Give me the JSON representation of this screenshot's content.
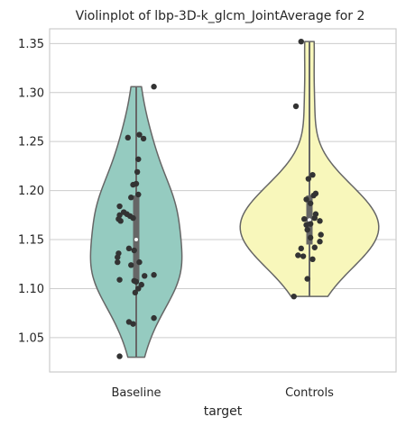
{
  "chart_data": {
    "type": "violin",
    "title": "Violinplot of lbp-3D-k_glcm_JointAverage for 2",
    "xlabel": "target",
    "ylabel": "",
    "categories": [
      "Baseline",
      "Controls"
    ],
    "ylim": [
      1.015,
      1.365
    ],
    "yticks": [
      1.05,
      1.1,
      1.15,
      1.2,
      1.25,
      1.3,
      1.35
    ],
    "ytick_labels": [
      "1.05",
      "1.10",
      "1.15",
      "1.20",
      "1.25",
      "1.30",
      "1.35"
    ],
    "grid": "horizontal",
    "colors": {
      "Baseline": "#95cbc0",
      "Controls": "#f8f7bb",
      "outline": "#666666",
      "box": "#666666",
      "points": "#333333",
      "grid": "#cccccc"
    },
    "series": [
      {
        "name": "Baseline",
        "min": 1.03,
        "q1": 1.108,
        "median": 1.15,
        "q3": 1.195,
        "max": 1.306,
        "points": [
          [
            0.17,
            1.306
          ],
          [
            -0.08,
            1.254
          ],
          [
            0.03,
            1.257
          ],
          [
            0.07,
            1.253
          ],
          [
            0.02,
            1.232
          ],
          [
            0.01,
            1.219
          ],
          [
            -0.03,
            1.206
          ],
          [
            0.0,
            1.207
          ],
          [
            0.02,
            1.196
          ],
          [
            -0.05,
            1.193
          ],
          [
            -0.16,
            1.184
          ],
          [
            -0.12,
            1.178
          ],
          [
            -0.16,
            1.175
          ],
          [
            -0.09,
            1.176
          ],
          [
            -0.06,
            1.174
          ],
          [
            -0.17,
            1.171
          ],
          [
            -0.15,
            1.169
          ],
          [
            -0.03,
            1.172
          ],
          [
            -0.07,
            1.141
          ],
          [
            -0.02,
            1.139
          ],
          [
            -0.17,
            1.136
          ],
          [
            -0.18,
            1.132
          ],
          [
            -0.18,
            1.127
          ],
          [
            0.03,
            1.127
          ],
          [
            -0.05,
            1.124
          ],
          [
            0.08,
            1.113
          ],
          [
            0.17,
            1.114
          ],
          [
            -0.16,
            1.109
          ],
          [
            -0.02,
            1.108
          ],
          [
            0.0,
            1.107
          ],
          [
            0.05,
            1.104
          ],
          [
            -0.01,
            1.096
          ],
          [
            0.02,
            1.1
          ],
          [
            0.17,
            1.07
          ],
          [
            -0.07,
            1.066
          ],
          [
            -0.03,
            1.064
          ],
          [
            -0.16,
            1.031
          ]
        ]
      },
      {
        "name": "Controls",
        "min": 1.092,
        "q1": 1.145,
        "median": 1.17,
        "q3": 1.195,
        "max": 1.352,
        "points": [
          [
            -0.08,
            1.352
          ],
          [
            -0.13,
            1.286
          ],
          [
            0.03,
            1.216
          ],
          [
            -0.01,
            1.212
          ],
          [
            0.06,
            1.197
          ],
          [
            0.04,
            1.195
          ],
          [
            -0.03,
            1.191
          ],
          [
            0.01,
            1.187
          ],
          [
            0.06,
            1.176
          ],
          [
            0.05,
            1.172
          ],
          [
            0.1,
            1.169
          ],
          [
            -0.05,
            1.171
          ],
          [
            0.01,
            1.166
          ],
          [
            -0.03,
            1.165
          ],
          [
            -0.02,
            1.16
          ],
          [
            0.11,
            1.155
          ],
          [
            0.01,
            1.152
          ],
          [
            0.1,
            1.148
          ],
          [
            -0.08,
            1.141
          ],
          [
            0.05,
            1.142
          ],
          [
            -0.11,
            1.134
          ],
          [
            -0.06,
            1.133
          ],
          [
            0.03,
            1.13
          ],
          [
            -0.02,
            1.11
          ],
          [
            -0.15,
            1.092
          ]
        ]
      }
    ]
  }
}
